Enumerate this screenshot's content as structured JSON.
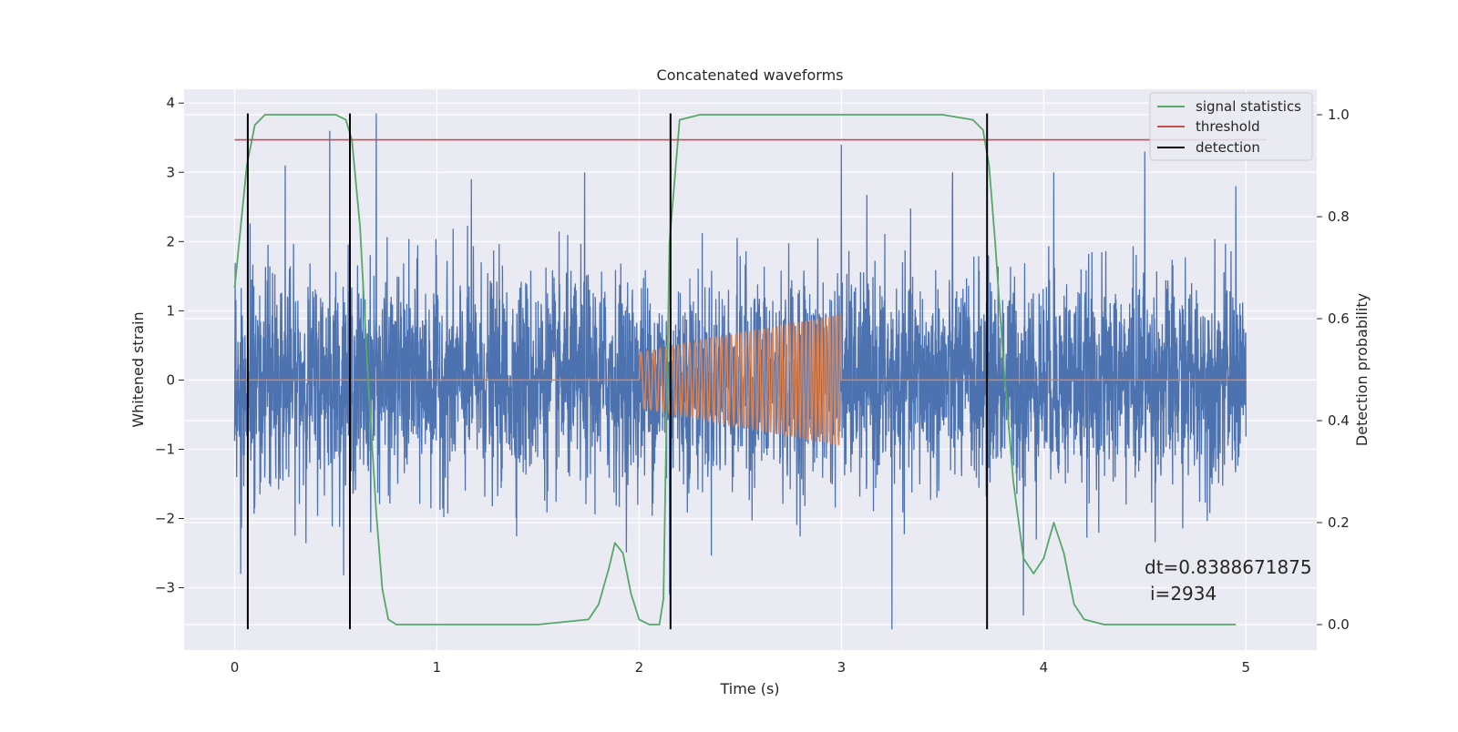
{
  "chart_data": {
    "type": "line",
    "title": "Concatenated waveforms",
    "xlabel": "Time (s)",
    "ylabel": "Whitened strain",
    "y2label": "Detection probability",
    "xlim": [
      -0.25,
      5.35
    ],
    "ylim": [
      -3.9,
      4.2
    ],
    "y2lim": [
      -0.05,
      1.05
    ],
    "x_ticks": [
      0,
      1,
      2,
      3,
      4,
      5
    ],
    "y_ticks": [
      -3,
      -2,
      -1,
      0,
      1,
      2,
      3,
      4
    ],
    "y2_ticks": [
      0.0,
      0.2,
      0.4,
      0.6,
      0.8,
      1.0
    ],
    "x_tick_labels": [
      "0",
      "1",
      "2",
      "3",
      "4",
      "5"
    ],
    "y_tick_labels": [
      "−3",
      "−2",
      "−1",
      "0",
      "1",
      "2",
      "3",
      "4"
    ],
    "y2_tick_labels": [
      "0.0",
      "0.2",
      "0.4",
      "0.6",
      "0.8",
      "1.0"
    ],
    "grid": true,
    "legend_position": "top-right",
    "colors": {
      "background": "#eaeaf2",
      "grid": "#ffffff",
      "noise": "#4c72b0",
      "injection": "#dd8452",
      "statistics": "#55a868",
      "threshold": "#c44e52",
      "detection": "#000000"
    },
    "series": [
      {
        "name": "",
        "role": "noise",
        "axis": "left",
        "x_range": [
          0,
          5
        ],
        "sigma": 0.75,
        "extremes_x": [
          0.03,
          0.25,
          0.47,
          0.7,
          1.17,
          1.73,
          2.15,
          3.0,
          3.25,
          3.55,
          3.9,
          4.05,
          4.5,
          4.95
        ],
        "extremes_y": [
          -2.8,
          3.1,
          3.6,
          3.85,
          2.9,
          3.0,
          -3.1,
          3.4,
          -3.6,
          3.0,
          -3.4,
          3.0,
          3.3,
          2.8
        ]
      },
      {
        "name": "",
        "role": "injection",
        "axis": "left",
        "x": [
          0,
          2.0,
          2.0,
          3.0,
          3.0,
          5.0
        ],
        "envelope": [
          0,
          0,
          0.4,
          0.95,
          0,
          0
        ],
        "freq_start_hz": 30,
        "freq_end_hz": 55
      },
      {
        "name": "signal statistics",
        "axis": "right",
        "x": [
          0.0,
          0.03,
          0.06,
          0.1,
          0.15,
          0.2,
          0.5,
          0.55,
          0.58,
          0.62,
          0.66,
          0.7,
          0.73,
          0.76,
          0.8,
          1.0,
          1.5,
          1.75,
          1.8,
          1.85,
          1.88,
          1.92,
          1.96,
          2.0,
          2.05,
          2.1,
          2.12,
          2.15,
          2.2,
          2.3,
          3.5,
          3.65,
          3.7,
          3.73,
          3.76,
          3.8,
          3.85,
          3.9,
          3.95,
          4.0,
          4.05,
          4.1,
          4.15,
          4.2,
          4.3,
          4.95
        ],
        "values": [
          0.66,
          0.78,
          0.9,
          0.98,
          1.0,
          1.0,
          1.0,
          0.99,
          0.95,
          0.78,
          0.48,
          0.22,
          0.07,
          0.01,
          0.0,
          0.0,
          0.0,
          0.01,
          0.04,
          0.11,
          0.16,
          0.14,
          0.06,
          0.01,
          0.0,
          0.0,
          0.05,
          0.75,
          0.99,
          1.0,
          1.0,
          0.99,
          0.97,
          0.9,
          0.75,
          0.52,
          0.28,
          0.13,
          0.1,
          0.13,
          0.2,
          0.14,
          0.04,
          0.01,
          0.0,
          0.0
        ]
      },
      {
        "name": "threshold",
        "axis": "left",
        "x": [
          0,
          5.1
        ],
        "values": [
          3.47,
          3.47
        ]
      },
      {
        "name": "detection",
        "axis": "left",
        "x": [
          0.065,
          0.57,
          2.155,
          3.72
        ],
        "range": [
          -3.6,
          3.85
        ]
      }
    ],
    "annotations": [
      "dt=0.8388671875",
      "i=2934"
    ]
  }
}
